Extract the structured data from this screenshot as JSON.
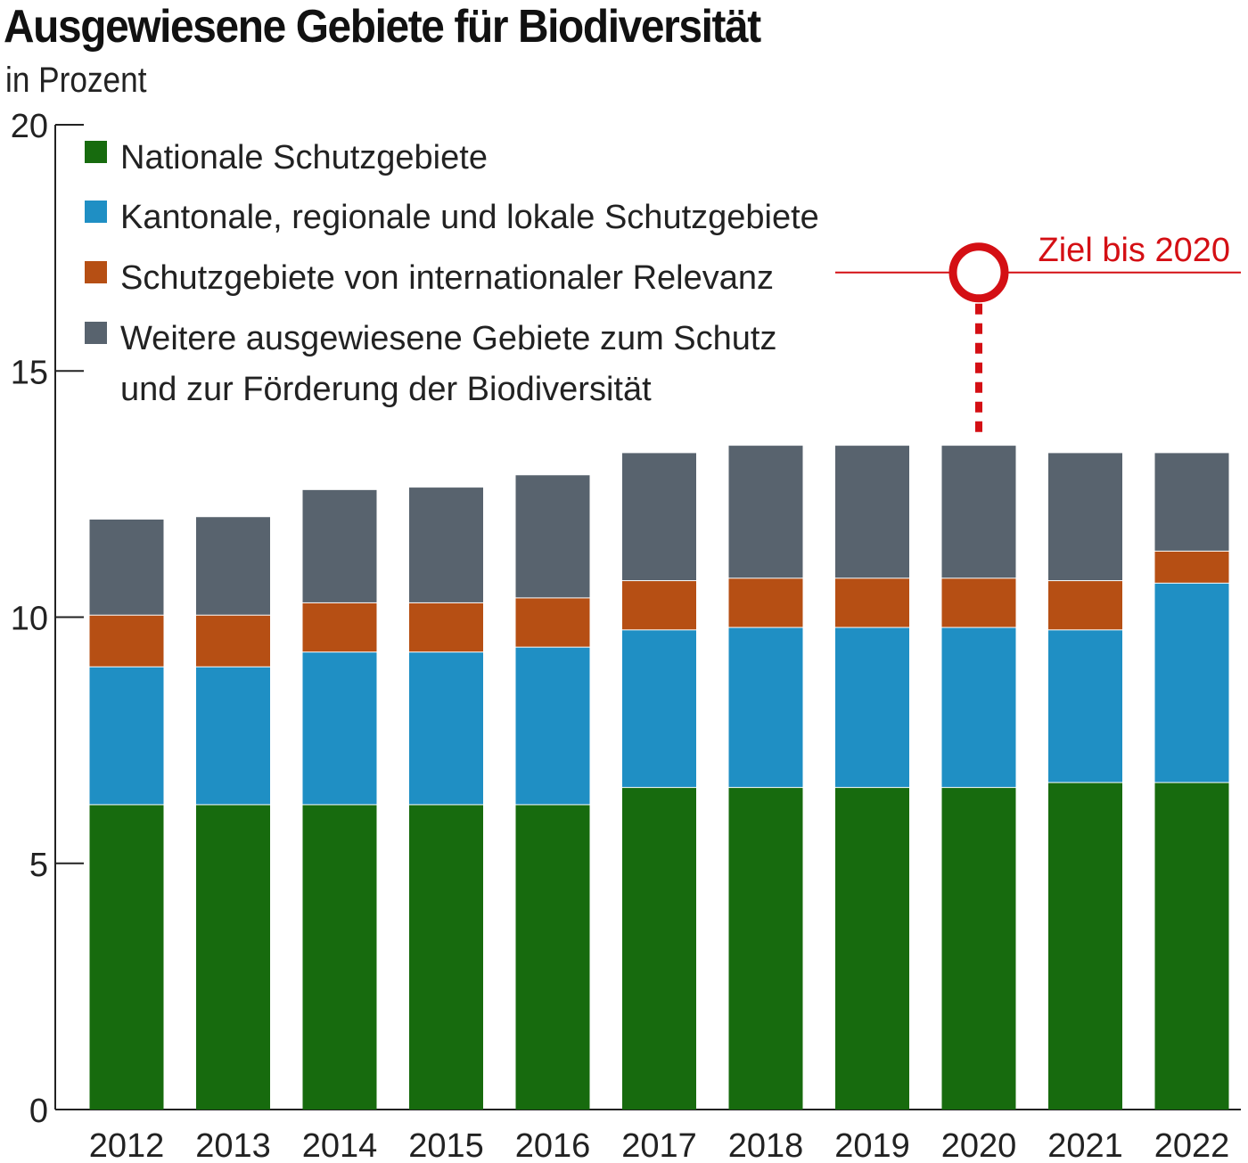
{
  "chart_data": {
    "type": "bar",
    "stacked": true,
    "title": "Ausgewiesene Gebiete für Biodiversität",
    "subtitle": "in Prozent",
    "xlabel": "",
    "ylabel": "",
    "ylim": [
      0,
      20
    ],
    "yticks": [
      0,
      5,
      10,
      15,
      20
    ],
    "grid": false,
    "legend_position": "top-left",
    "categories": [
      "2012",
      "2013",
      "2014",
      "2015",
      "2016",
      "2017",
      "2018",
      "2019",
      "2020",
      "2021",
      "2022"
    ],
    "series": [
      {
        "name": "Nationale Schutzgebiete",
        "color": "#176b0e",
        "values": [
          6.2,
          6.2,
          6.2,
          6.2,
          6.2,
          6.55,
          6.55,
          6.55,
          6.55,
          6.65,
          6.65
        ]
      },
      {
        "name": "Kantonale, regionale und lokale Schutzgebiete",
        "color": "#1f8fc4",
        "values": [
          2.8,
          2.8,
          3.1,
          3.1,
          3.2,
          3.2,
          3.25,
          3.25,
          3.25,
          3.1,
          4.05
        ]
      },
      {
        "name": "Schutzgebiete von internationaler Relevanz",
        "color": "#b64f14",
        "values": [
          1.05,
          1.05,
          1.0,
          1.0,
          1.0,
          1.0,
          1.0,
          1.0,
          1.0,
          1.0,
          0.65
        ]
      },
      {
        "name": "Weitere ausgewiesene Gebiete zum Schutz und zur Förderung der Biodiversität",
        "name_lines": [
          "Weitere ausgewiesene Gebiete zum Schutz",
          "und zur Förderung der Biodiversität"
        ],
        "color": "#58636e",
        "values": [
          1.95,
          2.0,
          2.3,
          2.35,
          2.5,
          2.6,
          2.7,
          2.7,
          2.7,
          2.6,
          2.0
        ]
      }
    ],
    "annotation": {
      "label": "Ziel bis 2020",
      "value": 17,
      "year": "2020",
      "color": "#d40f14"
    }
  }
}
